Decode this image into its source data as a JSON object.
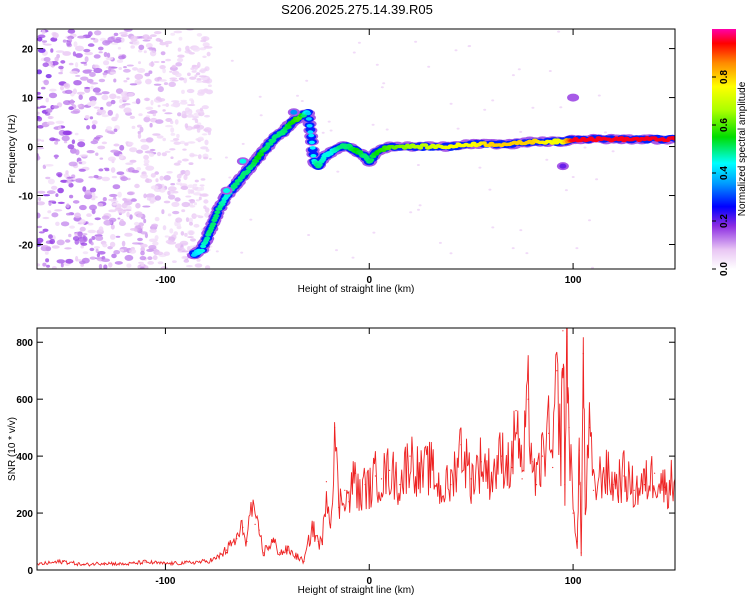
{
  "title": "S206.2025.275.14.39.R05",
  "chart_data": [
    {
      "type": "heatmap",
      "title": "S206.2025.275.14.39.R05",
      "xlabel": "Height of straight line (km)",
      "ylabel": "Frequency (Hz)",
      "xlim": [
        -163,
        150
      ],
      "ylim": [
        -25,
        24
      ],
      "xticks": [
        -100,
        0,
        100
      ],
      "xtick_labels": [
        "-100",
        "0",
        "100"
      ],
      "yticks": [
        -20,
        -10,
        0,
        10,
        20
      ],
      "ytick_labels": [
        "-20",
        "-10",
        "0",
        "10",
        "20"
      ],
      "colorbar": {
        "label": "Normalized spectral amplitude",
        "range": [
          0,
          1
        ],
        "ticks": [
          0.0,
          0.2,
          0.4,
          0.6,
          0.8
        ],
        "tick_labels": [
          "0.0",
          "0.2",
          "0.4",
          "0.6",
          "0.8"
        ]
      },
      "ridge": {
        "height_km": [
          -86,
          -82,
          -78,
          -74,
          -70,
          -66,
          -62,
          -58,
          -54,
          -50,
          -46,
          -42,
          -38,
          -34,
          -30,
          -27,
          -25,
          -22,
          -18,
          -14,
          -10,
          -6,
          -2,
          0,
          4,
          10,
          20,
          30,
          40,
          50,
          60,
          70,
          80,
          90,
          95,
          100,
          110,
          120,
          130,
          140,
          150
        ],
        "frequency_hz": [
          -22,
          -21,
          -17,
          -13,
          -10,
          -8,
          -6,
          -4,
          -2,
          0,
          2,
          3,
          5,
          6,
          7,
          -3,
          -4,
          -2,
          -1,
          0,
          0,
          -1,
          -2,
          -3,
          -1,
          0,
          0,
          0,
          0,
          0.5,
          0.5,
          0.5,
          1,
          1,
          1,
          1.5,
          1.5,
          1.5,
          1.5,
          1.5,
          1.5
        ],
        "amplitude": [
          0.4,
          0.45,
          0.5,
          0.5,
          0.45,
          0.5,
          0.5,
          0.5,
          0.55,
          0.5,
          0.5,
          0.5,
          0.55,
          0.6,
          0.4,
          0.45,
          0.5,
          0.45,
          0.45,
          0.5,
          0.5,
          0.55,
          0.5,
          0.5,
          0.55,
          0.6,
          0.65,
          0.7,
          0.75,
          0.75,
          0.8,
          0.8,
          0.8,
          0.75,
          0.75,
          0.95,
          0.95,
          0.95,
          0.95,
          0.95,
          0.95
        ]
      },
      "isolated_blobs": [
        {
          "height_km": -62,
          "frequency_hz": -3,
          "amplitude": 0.45
        },
        {
          "height_km": -70,
          "frequency_hz": -9,
          "amplitude": 0.45
        },
        {
          "height_km": -37,
          "frequency_hz": 7,
          "amplitude": 0.35
        },
        {
          "height_km": 100,
          "frequency_hz": 10,
          "amplitude": 0.15
        },
        {
          "height_km": 95,
          "frequency_hz": -4,
          "amplitude": 0.2
        }
      ]
    },
    {
      "type": "line",
      "xlabel": "Height of straight line (km)",
      "ylabel": "SNR (10 * v/v)",
      "xlim": [
        -163,
        150
      ],
      "ylim": [
        0,
        850
      ],
      "xticks": [
        -100,
        0,
        100
      ],
      "xtick_labels": [
        "-100",
        "0",
        "100"
      ],
      "yticks": [
        0,
        200,
        400,
        600,
        800
      ],
      "ytick_labels": [
        "0",
        "200",
        "400",
        "600",
        "800"
      ],
      "color": "#ee2222",
      "series": [
        {
          "name": "SNR",
          "x": [
            -163,
            -150,
            -140,
            -130,
            -120,
            -110,
            -100,
            -90,
            -80,
            -75,
            -70,
            -65,
            -62,
            -60,
            -58,
            -56,
            -54,
            -52,
            -50,
            -47,
            -44,
            -40,
            -36,
            -32,
            -28,
            -25,
            -23,
            -21,
            -19,
            -17,
            -15,
            -12,
            -10,
            -7,
            -5,
            -2,
            0,
            3,
            6,
            10,
            15,
            20,
            25,
            30,
            35,
            40,
            45,
            50,
            55,
            60,
            65,
            70,
            72,
            75,
            78,
            80,
            82,
            85,
            88,
            90,
            92,
            94,
            95,
            96,
            97,
            98,
            100,
            102,
            103,
            104,
            105,
            106,
            108,
            110,
            115,
            120,
            125,
            130,
            135,
            140,
            145,
            150
          ],
          "y": [
            20,
            30,
            18,
            25,
            20,
            28,
            22,
            25,
            30,
            40,
            70,
            110,
            150,
            100,
            230,
            160,
            140,
            60,
            80,
            100,
            60,
            70,
            50,
            30,
            150,
            100,
            90,
            310,
            150,
            500,
            220,
            280,
            240,
            340,
            250,
            300,
            280,
            330,
            320,
            350,
            300,
            400,
            330,
            360,
            280,
            300,
            440,
            320,
            380,
            330,
            400,
            360,
            560,
            320,
            600,
            380,
            300,
            400,
            480,
            360,
            700,
            400,
            840,
            300,
            820,
            500,
            200,
            100,
            420,
            60,
            760,
            200,
            500,
            280,
            350,
            300,
            330,
            280,
            300,
            340,
            290,
            320
          ]
        }
      ]
    }
  ]
}
